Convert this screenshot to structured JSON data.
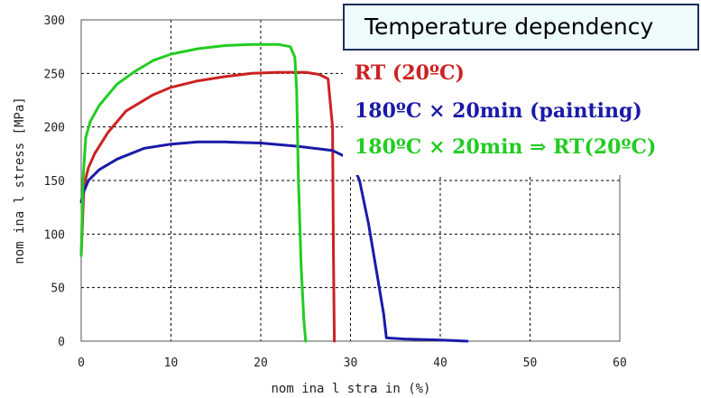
{
  "legend": {
    "title": "Temperature dependency"
  },
  "chart_data": {
    "type": "line",
    "title": "",
    "xlabel": "nom ina l stra in (%)",
    "ylabel": "nom ina l stress [MPa]",
    "xlim": [
      0,
      60
    ],
    "ylim": [
      0,
      300
    ],
    "xticks": [
      0,
      10,
      20,
      30,
      40,
      50,
      60
    ],
    "yticks": [
      0,
      50,
      100,
      150,
      200,
      250,
      300
    ],
    "grid": true,
    "legend_position": "top-right",
    "series": [
      {
        "name": "RT (20ºC)",
        "color": "#cc2222",
        "x": [
          0,
          0.3,
          0.8,
          1.5,
          3,
          5,
          8,
          10,
          13,
          16,
          19,
          22,
          25,
          26.5,
          27.5,
          28,
          28.1,
          28.2
        ],
        "y": [
          80,
          145,
          162,
          175,
          195,
          215,
          230,
          237,
          243,
          247,
          250,
          251,
          251,
          249,
          245,
          200,
          80,
          0
        ]
      },
      {
        "name": "180ºC × 20min (painting)",
        "color": "#1a1aa8",
        "x": [
          0,
          0.3,
          0.8,
          2,
          4,
          7,
          10,
          13,
          16,
          20,
          24,
          28,
          30,
          31,
          32,
          33,
          33.7,
          34,
          36,
          40,
          43
        ],
        "y": [
          130,
          140,
          150,
          160,
          170,
          180,
          184,
          186,
          186,
          185,
          182,
          178,
          170,
          150,
          110,
          60,
          25,
          3,
          2,
          1,
          0
        ]
      },
      {
        "name": "180ºC × 20min ⇒ RT(20ºC)",
        "color": "#22cc22",
        "x": [
          0,
          0.2,
          0.5,
          1,
          2,
          4,
          6,
          8,
          10,
          13,
          16,
          19,
          22,
          23.3,
          23.8,
          24,
          24.2,
          24.5,
          24.8,
          25
        ],
        "y": [
          80,
          150,
          190,
          205,
          220,
          240,
          252,
          262,
          268,
          273,
          276,
          277,
          277,
          275,
          265,
          235,
          150,
          70,
          20,
          0
        ]
      }
    ]
  }
}
